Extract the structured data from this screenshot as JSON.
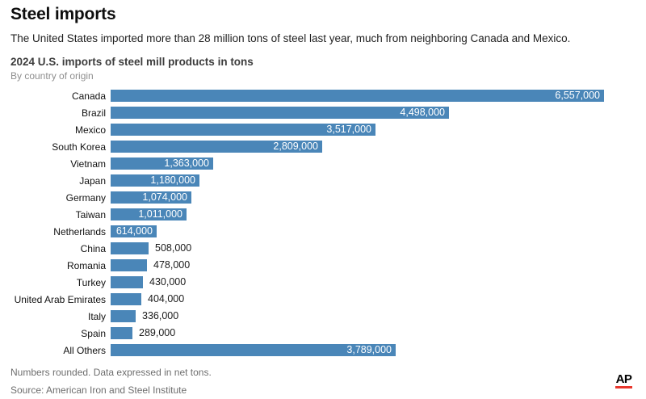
{
  "page": {
    "title": "Steel imports",
    "description": "The United States imported more than 28 million tons of steel last year, much from neighboring Canada and Mexico.",
    "footnote": "Numbers rounded. Data expressed in net tons.",
    "source": "Source: American Iron and Steel Institute",
    "logo": "AP"
  },
  "colors": {
    "bar": "#4a86b8",
    "value_inside": "#ffffff",
    "value_outside": "#1a1a1a",
    "ap_red": "#e8372d"
  },
  "chart_data": {
    "type": "bar",
    "orientation": "horizontal",
    "title": "2024 U.S. imports of steel mill products in tons",
    "subtitle": "By country of origin",
    "categories": [
      "Canada",
      "Brazil",
      "Mexico",
      "South Korea",
      "Vietnam",
      "Japan",
      "Germany",
      "Taiwan",
      "Netherlands",
      "China",
      "Romania",
      "Turkey",
      "United Arab Emirates",
      "Italy",
      "Spain",
      "All Others"
    ],
    "values": [
      6557000,
      4498000,
      3517000,
      2809000,
      1363000,
      1180000,
      1074000,
      1011000,
      614000,
      508000,
      478000,
      430000,
      404000,
      336000,
      289000,
      3789000
    ],
    "value_labels": [
      "6,557,000",
      "4,498,000",
      "3,517,000",
      "2,809,000",
      "1,363,000",
      "1,180,000",
      "1,074,000",
      "1,011,000",
      "614,000",
      "508,000",
      "478,000",
      "430,000",
      "404,000",
      "336,000",
      "289,000",
      "3,789,000"
    ],
    "xlim": [
      0,
      6557000
    ],
    "grid": false,
    "legend": false,
    "value_label_placement": "inside bar (white) when bar is wide enough, otherwise outside right (dark)"
  }
}
